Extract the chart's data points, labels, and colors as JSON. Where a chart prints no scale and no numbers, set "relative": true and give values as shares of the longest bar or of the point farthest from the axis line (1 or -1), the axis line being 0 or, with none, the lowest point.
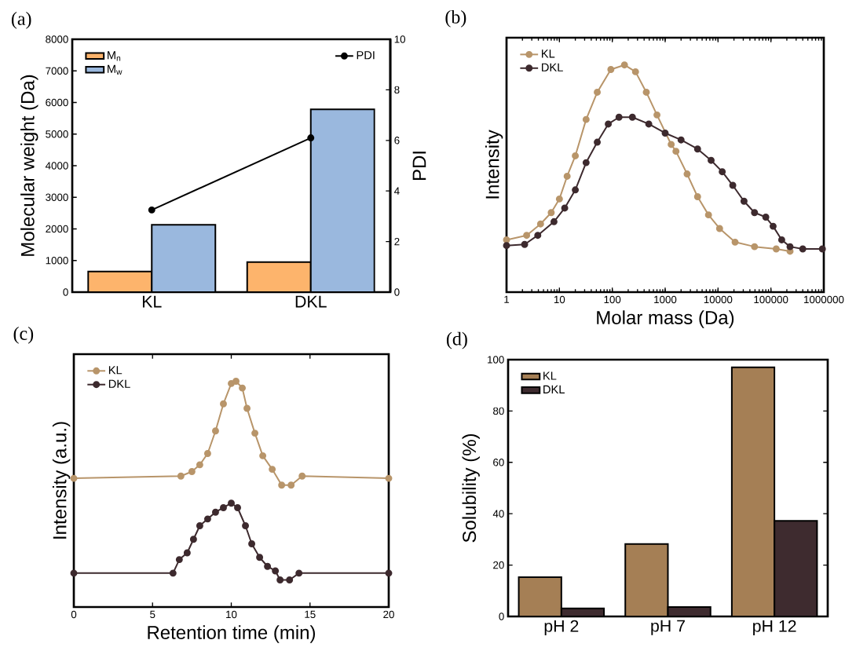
{
  "chart_data": [
    {
      "type": "bar",
      "title": "(a)",
      "ylabel": "Molecular weight (Da)",
      "y2label": "PDI",
      "categories": [
        "KL",
        "DKL"
      ],
      "series": [
        {
          "name": "M$_{n}$",
          "color": "#fdb46c",
          "values": [
            650,
            950
          ]
        },
        {
          "name": "M$_{w}$",
          "color": "#9ab8de",
          "values": [
            2130,
            5780
          ]
        },
        {
          "name": "PDI",
          "type": "line",
          "axis": "y2",
          "color": "#000000",
          "values": [
            3.25,
            6.1
          ]
        }
      ],
      "ylim": [
        0,
        8000
      ],
      "yticks": [
        0,
        1000,
        2000,
        3000,
        4000,
        5000,
        6000,
        7000,
        8000
      ],
      "y2lim": [
        0,
        10
      ],
      "y2ticks": [
        0,
        2,
        4,
        6,
        8,
        10
      ],
      "marker": "circle",
      "legend": "top left"
    },
    {
      "type": "line",
      "title": "(b)",
      "xlabel": "Molar mass (Da)",
      "ylabel": "Intensity",
      "relative": true,
      "log": "x",
      "xlim": [
        1,
        1000000
      ],
      "xticks": [
        1,
        10,
        100,
        1000,
        10000,
        100000,
        1000000
      ],
      "series": [
        {
          "name": "KL",
          "color": "#b8956a",
          "x": [
            1,
            2.4,
            4.4,
            7,
            10,
            14,
            20,
            32,
            52,
            94,
            170,
            275,
            440,
            700,
            1300,
            1600,
            2600,
            4100,
            6600,
            10700,
            21000,
            49000,
            126000,
            230000
          ],
          "values": [
            0.23,
            0.25,
            0.3,
            0.35,
            0.41,
            0.51,
            0.6,
            0.76,
            0.88,
            0.98,
            1.0,
            0.97,
            0.88,
            0.78,
            0.65,
            0.62,
            0.52,
            0.42,
            0.34,
            0.28,
            0.22,
            0.2,
            0.19,
            0.18
          ]
        },
        {
          "name": "DKL",
          "color": "#3d2a2e",
          "x": [
            1,
            2.2,
            3.9,
            7.9,
            12.6,
            20,
            32,
            52,
            84,
            134,
            240,
            490,
            1000,
            2000,
            4100,
            7400,
            12000,
            19000,
            31000,
            49000,
            80000,
            110000,
            160000,
            230000,
            400000,
            940000
          ],
          "values": [
            0.205,
            0.21,
            0.25,
            0.31,
            0.37,
            0.45,
            0.57,
            0.66,
            0.74,
            0.77,
            0.77,
            0.74,
            0.7,
            0.67,
            0.63,
            0.58,
            0.53,
            0.47,
            0.4,
            0.35,
            0.33,
            0.29,
            0.23,
            0.2,
            0.19,
            0.19
          ]
        }
      ],
      "marker": "circle",
      "legend": "top left"
    },
    {
      "type": "line",
      "title": "(c)",
      "xlabel": "Retention time (min)",
      "ylabel": "Intensity (a.u.)",
      "relative": true,
      "xlim": [
        0,
        20
      ],
      "xticks": [
        0,
        5,
        10,
        15,
        20
      ],
      "series": [
        {
          "name": "KL",
          "color": "#b8956a",
          "x": [
            0,
            6.8,
            7.5,
            8,
            8.5,
            9,
            9.5,
            10,
            10.3,
            10.7,
            11,
            11.5,
            12,
            12.6,
            13.2,
            13.8,
            14.5,
            20
          ],
          "values": [
            0.57,
            0.58,
            0.6,
            0.63,
            0.68,
            0.78,
            0.9,
            0.99,
            1.0,
            0.97,
            0.88,
            0.77,
            0.67,
            0.61,
            0.54,
            0.54,
            0.58,
            0.57
          ]
        },
        {
          "name": "DKL",
          "color": "#3d2a2e",
          "x": [
            0,
            6.3,
            6.7,
            7.2,
            7.6,
            8,
            8.5,
            9,
            9.5,
            10,
            10.4,
            10.9,
            11.3,
            11.8,
            12.3,
            12.8,
            13.1,
            13.7,
            14.3,
            20
          ],
          "values": [
            0.15,
            0.15,
            0.21,
            0.24,
            0.3,
            0.36,
            0.39,
            0.42,
            0.44,
            0.46,
            0.44,
            0.36,
            0.28,
            0.22,
            0.18,
            0.16,
            0.12,
            0.12,
            0.15,
            0.15
          ]
        }
      ],
      "marker": "circle",
      "legend": "top left"
    },
    {
      "type": "bar",
      "title": "(d)",
      "ylabel": "Solubility (%)",
      "categories": [
        "pH 2",
        "pH 7",
        "pH 12"
      ],
      "series": [
        {
          "name": "KL",
          "color": "#a57f55",
          "values": [
            15.3,
            28.2,
            97
          ]
        },
        {
          "name": "DKL",
          "color": "#3e2b2f",
          "values": [
            3.1,
            3.7,
            37.2
          ]
        }
      ],
      "ylim": [
        0,
        100
      ],
      "yticks": [
        0,
        20,
        40,
        60,
        80,
        100
      ],
      "legend": "top left"
    }
  ]
}
